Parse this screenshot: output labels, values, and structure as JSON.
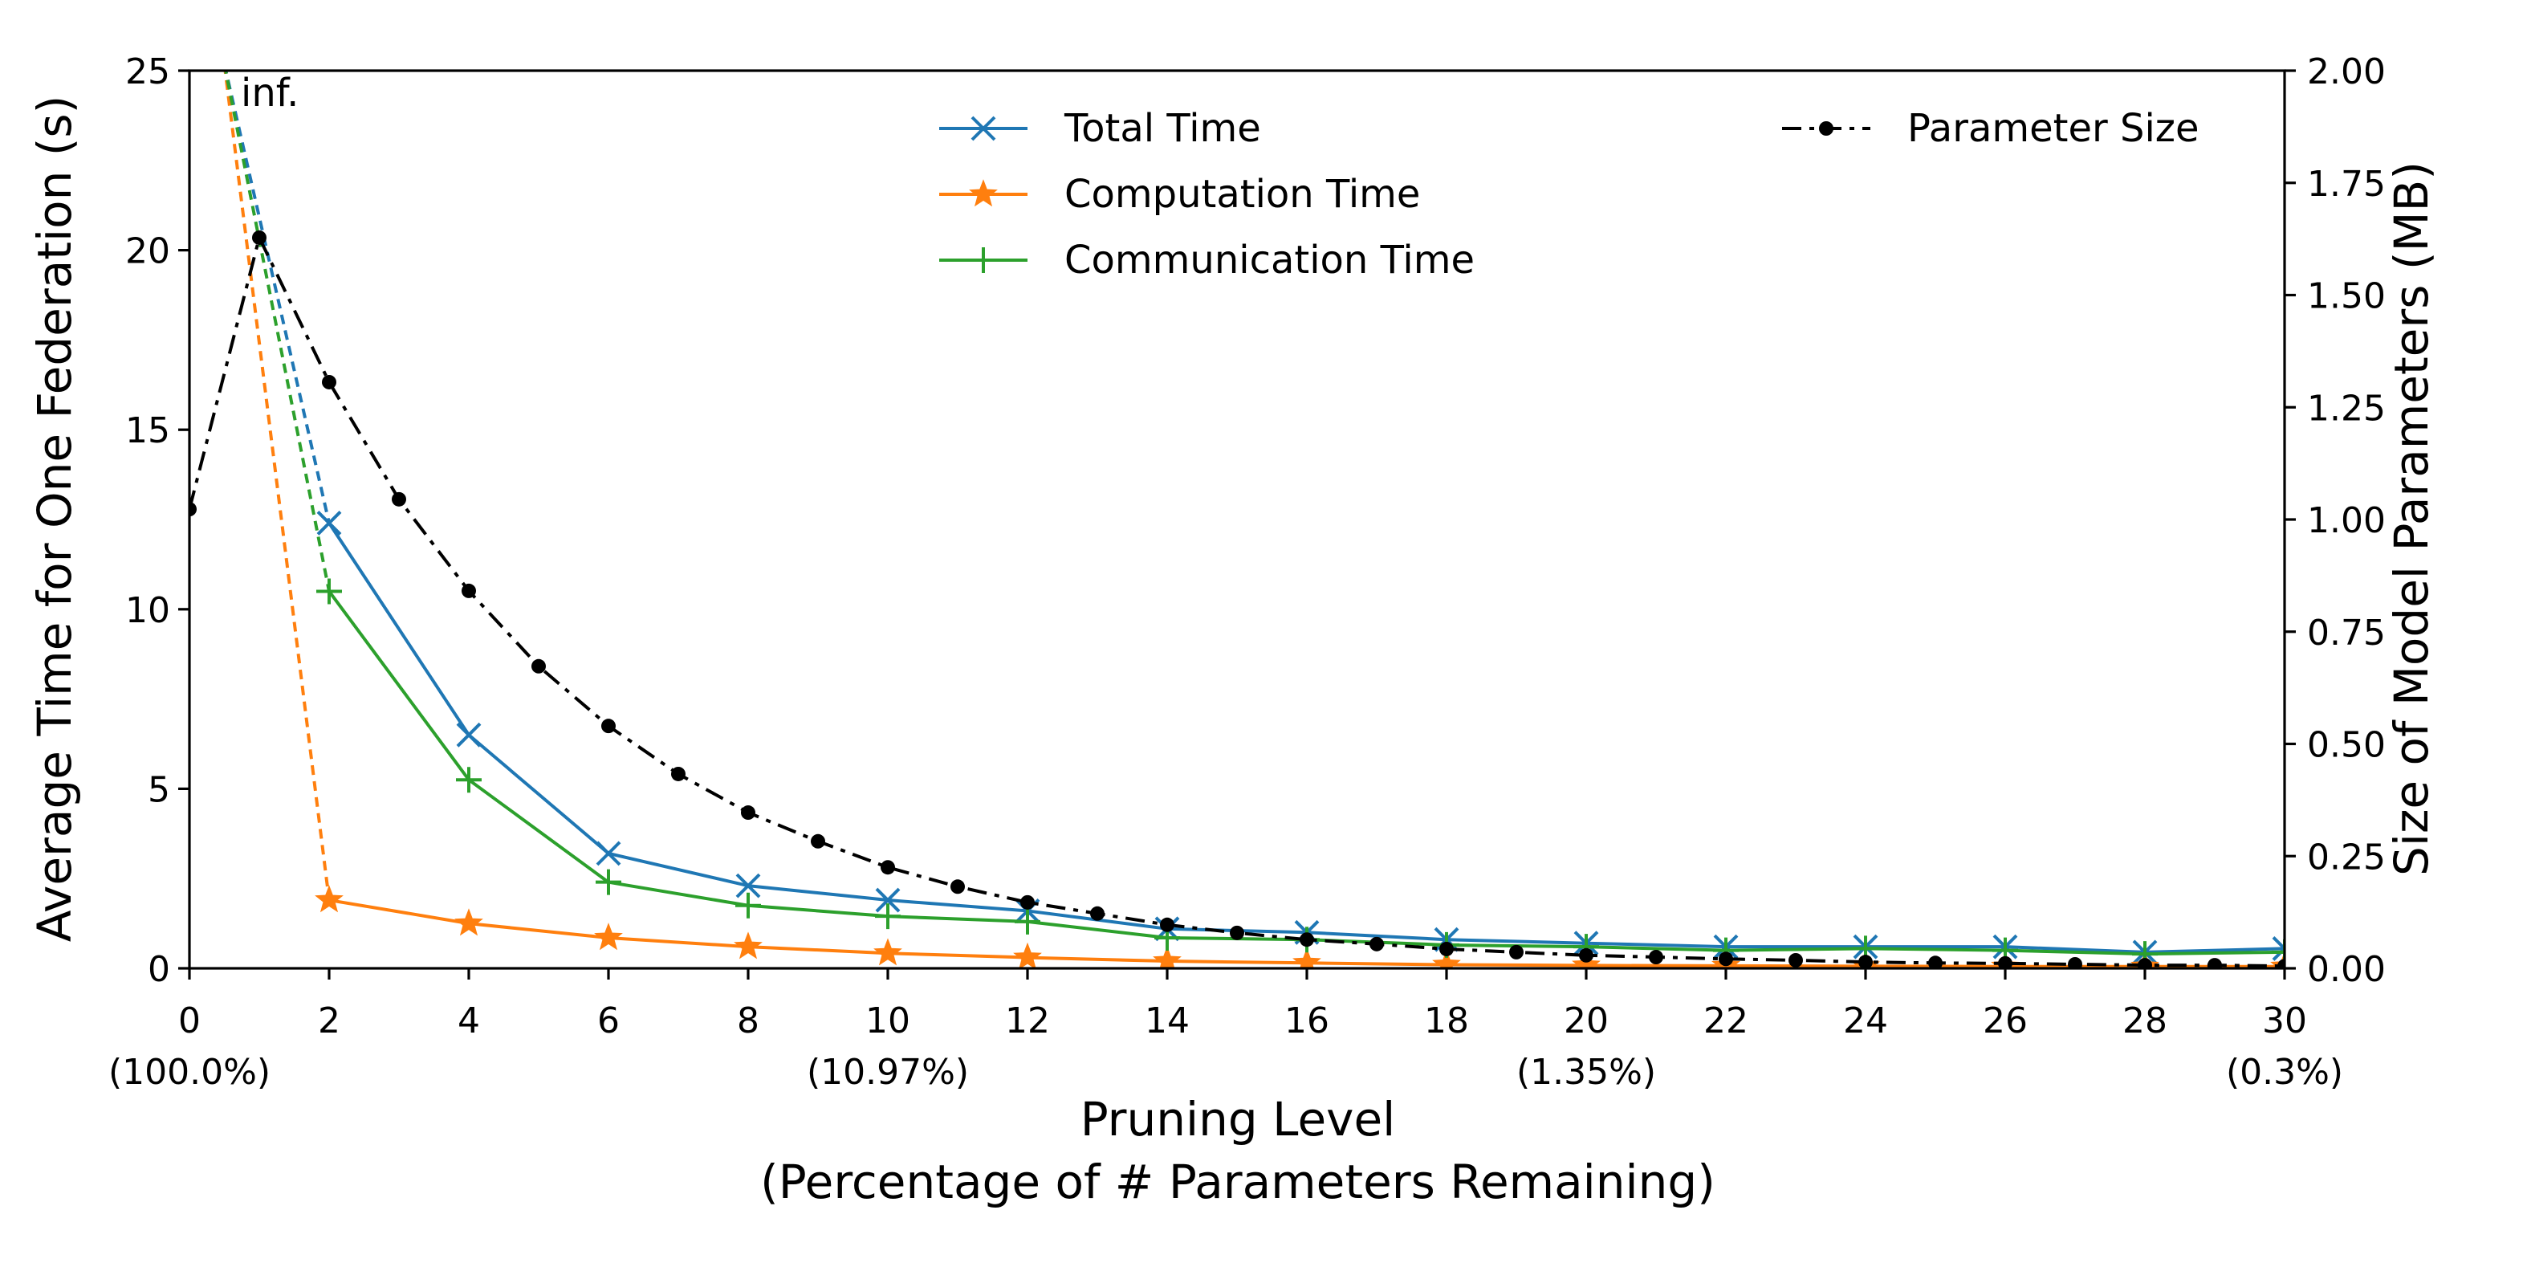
{
  "chart_data": {
    "type": "line",
    "xlabel": "Pruning Level",
    "xlabel_sub": "(Percentage of # Parameters Remaining)",
    "ylabel": "Average Time for One Federation (s)",
    "y2label": "Size of Model Parameters (MB)",
    "annotations": [
      {
        "text": "inf."
      }
    ],
    "x": [
      2,
      4,
      6,
      8,
      10,
      12,
      14,
      16,
      18,
      20,
      22,
      24,
      26,
      28,
      30
    ],
    "series": [
      {
        "name": "Total Time",
        "color": "#1f77b4",
        "marker": "x",
        "values": [
          12.4,
          6.5,
          3.2,
          2.3,
          1.9,
          1.6,
          1.1,
          1.0,
          0.8,
          0.7,
          0.6,
          0.6,
          0.6,
          0.45,
          0.55
        ]
      },
      {
        "name": "Computation Time",
        "color": "#ff7f0e",
        "marker": "star",
        "values": [
          1.9,
          1.25,
          0.85,
          0.6,
          0.42,
          0.3,
          0.2,
          0.15,
          0.1,
          0.08,
          0.07,
          0.06,
          0.05,
          0.05,
          0.05
        ]
      },
      {
        "name": "Communication Time",
        "color": "#2ca02c",
        "marker": "plus",
        "values": [
          10.5,
          5.25,
          2.4,
          1.75,
          1.45,
          1.3,
          0.85,
          0.8,
          0.65,
          0.6,
          0.5,
          0.55,
          0.5,
          0.4,
          0.45
        ]
      },
      {
        "name": "Parameter Size",
        "color": "#000000",
        "marker": "dot",
        "axis": "y2",
        "linestyle": "dashdot",
        "x": [
          0,
          1,
          2,
          3,
          4,
          5,
          6,
          7,
          8,
          9,
          10,
          11,
          12,
          13,
          14,
          15,
          16,
          17,
          18,
          19,
          20,
          21,
          22,
          23,
          24,
          25,
          26,
          27,
          28,
          29,
          30
        ],
        "values": [
          1.023,
          1.628,
          1.306,
          1.045,
          0.841,
          0.673,
          0.54,
          0.433,
          0.347,
          0.283,
          0.225,
          0.182,
          0.147,
          0.122,
          0.097,
          0.079,
          0.064,
          0.054,
          0.043,
          0.036,
          0.029,
          0.025,
          0.021,
          0.018,
          0.014,
          0.012,
          0.011,
          0.009,
          0.007,
          0.007,
          0.005
        ]
      }
    ],
    "xlim": [
      0,
      30
    ],
    "xticks": [
      0,
      2,
      4,
      6,
      8,
      10,
      12,
      14,
      16,
      18,
      20,
      22,
      24,
      26,
      28,
      30
    ],
    "x_sublabels": [
      {
        "x": 0,
        "label": "(100.0%)"
      },
      {
        "x": 10,
        "label": "(10.97%)"
      },
      {
        "x": 20,
        "label": "(1.35%)"
      },
      {
        "x": 30,
        "label": "(0.3%)"
      }
    ],
    "ylim": [
      0,
      25
    ],
    "yticks": [
      0,
      5,
      10,
      15,
      20,
      25
    ],
    "y2lim": [
      0,
      2
    ],
    "y2ticks": [
      {
        "value": 0,
        "label": "0.00"
      },
      {
        "value": 0.25,
        "label": "0.25"
      },
      {
        "value": 0.5,
        "label": "0.50"
      },
      {
        "value": 0.75,
        "label": "0.75"
      },
      {
        "value": 1,
        "label": "1.00"
      },
      {
        "value": 1.25,
        "label": "1.25"
      },
      {
        "value": 1.5,
        "label": "1.50"
      },
      {
        "value": 1.75,
        "label": "1.75"
      },
      {
        "value": 2,
        "label": "2.00"
      }
    ],
    "grid": false
  }
}
